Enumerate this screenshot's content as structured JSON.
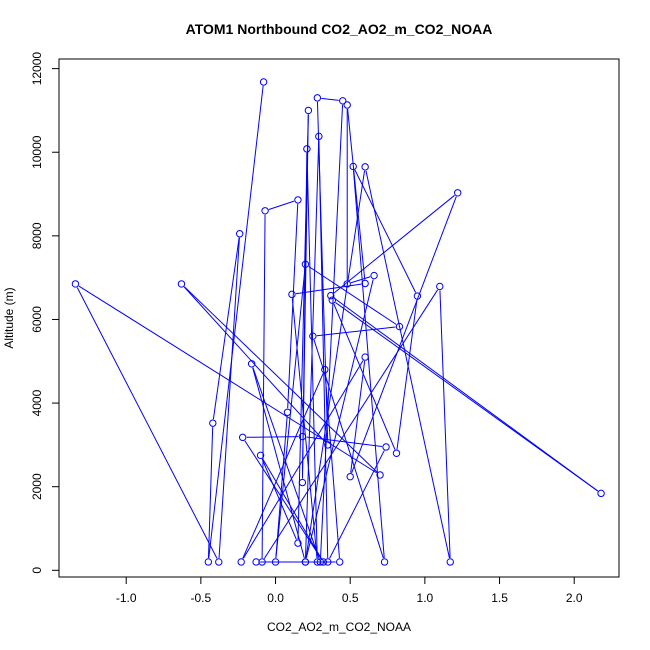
{
  "chart_data": {
    "type": "scatter",
    "title": "ATOM1 Northbound CO2_AO2_m_CO2_NOAA",
    "xlabel": "CO2_AO2_m_CO2_NOAA",
    "ylabel": "Altitude (m)",
    "xlim": [
      -1.45,
      2.3
    ],
    "ylim": [
      -160,
      12230
    ],
    "x_ticks": [
      -1.0,
      -0.5,
      0.0,
      0.5,
      1.0,
      1.5,
      2.0
    ],
    "x_tick_labels": [
      "-1.0",
      "-0.5",
      "0.0",
      "0.5",
      "1.0",
      "1.5",
      "2.0"
    ],
    "y_ticks": [
      0,
      2000,
      4000,
      6000,
      8000,
      10000,
      12000
    ],
    "y_tick_labels": [
      "0",
      "2000",
      "4000",
      "6000",
      "8000",
      "10000",
      "12000"
    ],
    "grid": false,
    "color": "#0000ff",
    "series": [
      {
        "values": [
          [
            -0.08,
            11680
          ],
          [
            -0.45,
            200
          ],
          [
            -0.42,
            3520
          ],
          [
            -0.24,
            8050
          ],
          [
            -0.38,
            200
          ],
          [
            -1.34,
            6850
          ],
          [
            0.7,
            2280
          ],
          [
            -0.63,
            6850
          ],
          [
            0.35,
            3000
          ],
          [
            0.28,
            11300
          ],
          [
            0.45,
            11230
          ],
          [
            0.3,
            200
          ],
          [
            -0.16,
            4940
          ],
          [
            0.2,
            200
          ],
          [
            0.29,
            10380
          ],
          [
            0.35,
            200
          ],
          [
            0.74,
            2950
          ],
          [
            0.18,
            3200
          ],
          [
            -0.22,
            3180
          ],
          [
            0.32,
            200
          ],
          [
            -0.1,
            2750
          ],
          [
            0.15,
            650
          ],
          [
            0.22,
            11000
          ],
          [
            0.18,
            2100
          ],
          [
            0.21,
            10080
          ],
          [
            0.28,
            200
          ],
          [
            0.11,
            6600
          ],
          [
            0.6,
            6860
          ],
          [
            0.48,
            11130
          ],
          [
            0.48,
            6850
          ],
          [
            0.66,
            7050
          ],
          [
            0.2,
            200
          ],
          [
            0.6,
            9650
          ],
          [
            1.17,
            200
          ],
          [
            1.1,
            6790
          ],
          [
            -0.09,
            200
          ],
          [
            -0.07,
            8600
          ],
          [
            0.15,
            8860
          ],
          [
            0.08,
            3780
          ],
          [
            0.0,
            200
          ],
          [
            0.2,
            7320
          ],
          [
            0.83,
            5830
          ],
          [
            0.25,
            5600
          ],
          [
            0.73,
            200
          ],
          [
            0.52,
            9660
          ],
          [
            0.95,
            6560
          ],
          [
            0.81,
            2800
          ],
          [
            0.38,
            6460
          ],
          [
            2.18,
            1840
          ],
          [
            0.37,
            6570
          ],
          [
            1.22,
            9030
          ],
          [
            0.5,
            2240
          ],
          [
            0.6,
            5100
          ],
          [
            -0.23,
            200
          ],
          [
            0.33,
            4800
          ],
          [
            0.43,
            200
          ],
          [
            -0.13,
            200
          ]
        ]
      }
    ]
  }
}
